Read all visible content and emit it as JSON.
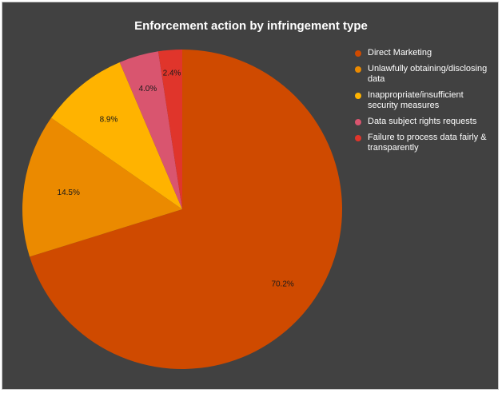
{
  "chart_data": {
    "type": "pie",
    "title": "Enforcement action by infringement type",
    "legend_position": "right",
    "series": [
      {
        "values": [
          70.2,
          14.5,
          8.9,
          4.0,
          2.4
        ]
      }
    ],
    "categories": [
      "Direct Marketing",
      "Unlawfully obtaining/disclosing data",
      "Inappropriate/insufficient security measures",
      "Data subject rights requests",
      "Failure to process data fairly & transparently"
    ],
    "data_labels": [
      "70.2%",
      "14.5%",
      "8.9%",
      "4.0%",
      "2.4%"
    ],
    "colors": [
      "#cf4a00",
      "#eb8a00",
      "#ffb300",
      "#d9556f",
      "#e0352b"
    ],
    "background": "#414141"
  }
}
